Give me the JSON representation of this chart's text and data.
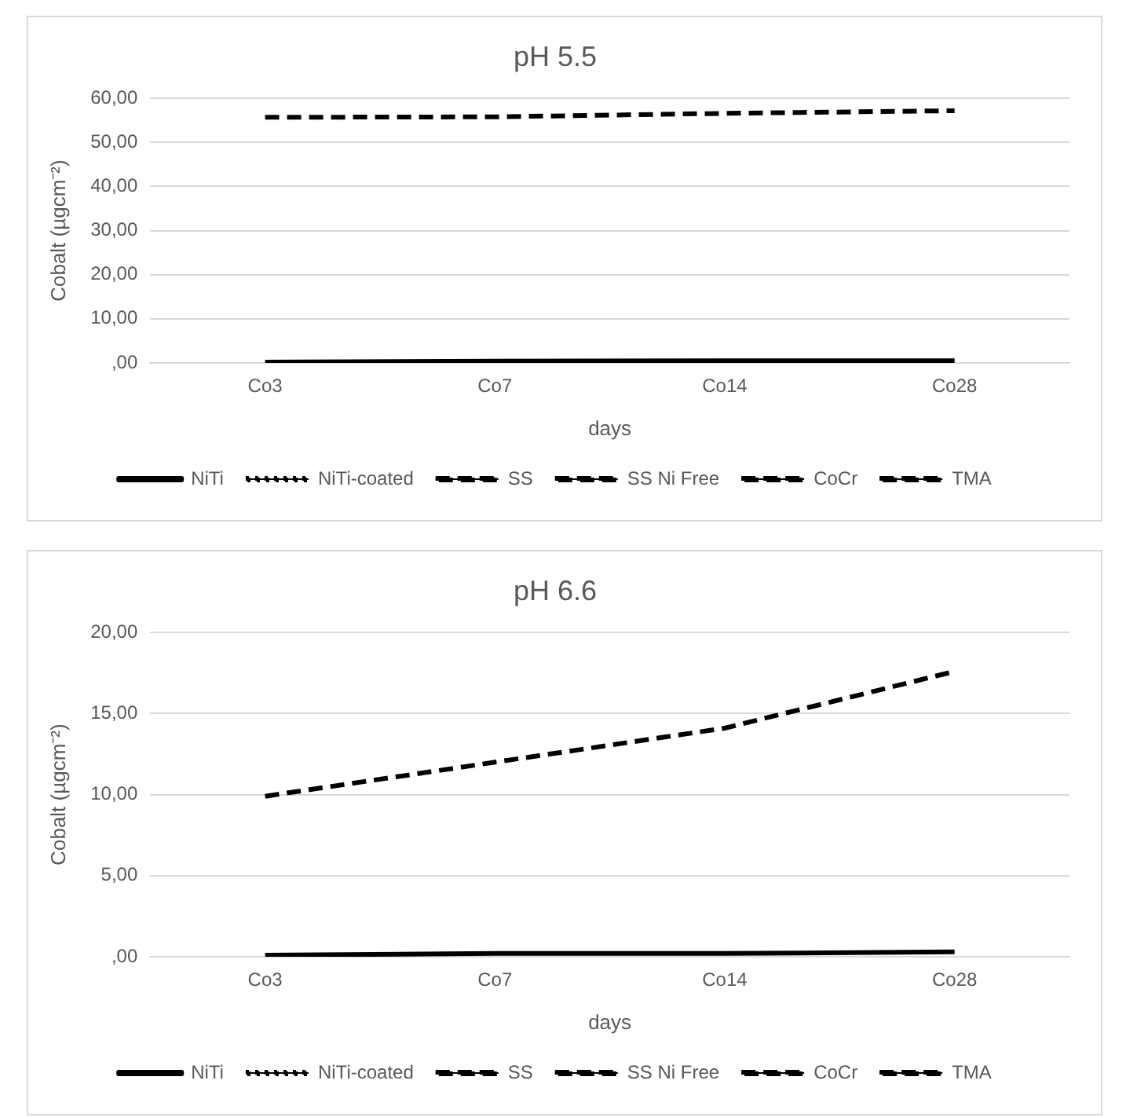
{
  "chart_data": [
    {
      "type": "line",
      "title": "pH 5.5",
      "xlabel": "days",
      "ylabel": "Cobalt (µgcm⁻²)",
      "categories": [
        "Co3",
        "Co7",
        "Co14",
        "Co28"
      ],
      "ylim": [
        0,
        60
      ],
      "yticks": [
        {
          "value": 0,
          "label": ",00"
        },
        {
          "value": 10,
          "label": "10,00"
        },
        {
          "value": 20,
          "label": "20,00"
        },
        {
          "value": 30,
          "label": "30,00"
        },
        {
          "value": 40,
          "label": "40,00"
        },
        {
          "value": 50,
          "label": "50,00"
        },
        {
          "value": 60,
          "label": "60,00"
        }
      ],
      "grid": "y",
      "legend": "bottom",
      "marker": "none",
      "series": [
        {
          "name": "NiTi",
          "color": "#000000",
          "line_style": "solid",
          "values": [
            0.2,
            0.4,
            0.5,
            0.5
          ]
        },
        {
          "name": "NiTi-coated",
          "color": "#000000",
          "line_style": "dotted",
          "values": [
            null,
            null,
            null,
            null
          ]
        },
        {
          "name": "SS",
          "color": "#000000",
          "line_style": "dashed",
          "values": [
            null,
            null,
            null,
            null
          ]
        },
        {
          "name": "SS Ni Free",
          "color": "#000000",
          "line_style": "dashed",
          "values": [
            null,
            null,
            null,
            null
          ]
        },
        {
          "name": "CoCr",
          "color": "#000000",
          "line_style": "dashed",
          "values": [
            55.7,
            55.8,
            56.6,
            57.2
          ]
        },
        {
          "name": "TMA",
          "color": "#000000",
          "line_style": "dashed",
          "values": [
            null,
            null,
            null,
            null
          ]
        }
      ]
    },
    {
      "type": "line",
      "title": "pH 6.6",
      "xlabel": "days",
      "ylabel": "Cobalt (µgcm⁻²)",
      "categories": [
        "Co3",
        "Co7",
        "Co14",
        "Co28"
      ],
      "ylim": [
        0,
        20
      ],
      "yticks": [
        {
          "value": 0,
          "label": ",00"
        },
        {
          "value": 5,
          "label": "5,00"
        },
        {
          "value": 10,
          "label": "10,00"
        },
        {
          "value": 15,
          "label": "15,00"
        },
        {
          "value": 20,
          "label": "20,00"
        }
      ],
      "grid": "y",
      "legend": "bottom",
      "marker": "none",
      "series": [
        {
          "name": "NiTi",
          "color": "#000000",
          "line_style": "solid",
          "values": [
            0.1,
            0.2,
            0.2,
            0.3
          ]
        },
        {
          "name": "NiTi-coated",
          "color": "#000000",
          "line_style": "dotted",
          "values": [
            null,
            null,
            null,
            null
          ]
        },
        {
          "name": "SS",
          "color": "#000000",
          "line_style": "dashed",
          "values": [
            null,
            null,
            null,
            null
          ]
        },
        {
          "name": "SS Ni Free",
          "color": "#000000",
          "line_style": "dashed",
          "values": [
            null,
            null,
            null,
            null
          ]
        },
        {
          "name": "CoCr",
          "color": "#000000",
          "line_style": "dashed",
          "values": [
            9.9,
            12.0,
            14.1,
            17.6
          ]
        },
        {
          "name": "TMA",
          "color": "#000000",
          "line_style": "dashed",
          "values": [
            null,
            null,
            null,
            null
          ]
        }
      ]
    }
  ]
}
